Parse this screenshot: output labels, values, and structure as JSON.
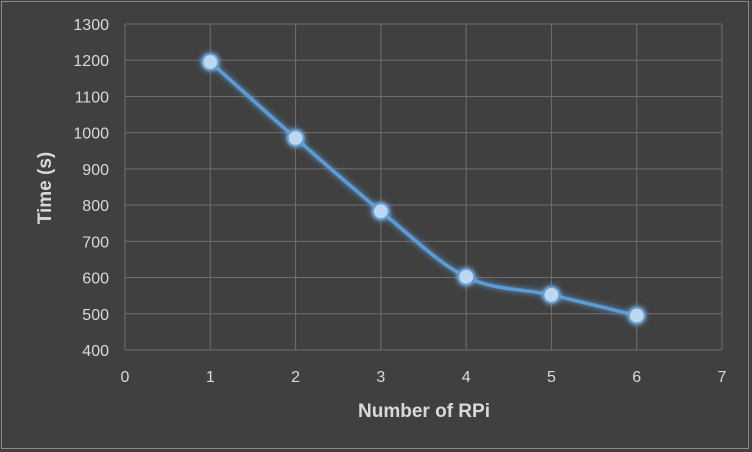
{
  "chart_data": {
    "type": "scatter",
    "mode": "lines+markers",
    "smoothed": true,
    "x": [
      1,
      2,
      3,
      4,
      5,
      6
    ],
    "y": [
      1195,
      985,
      783,
      602,
      552,
      495
    ],
    "xlabel": "Number of RPi",
    "ylabel": "Time (s)",
    "xlim": [
      0,
      7
    ],
    "ylim": [
      400,
      1300
    ],
    "xticks": [
      "0",
      "1",
      "2",
      "3",
      "4",
      "5",
      "6",
      "7"
    ],
    "yticks": [
      "400",
      "500",
      "600",
      "700",
      "800",
      "900",
      "1000",
      "1100",
      "1200",
      "1300"
    ],
    "grid": true,
    "legend": "none",
    "colors": {
      "background": "#404040",
      "grid": "#6e6e6e",
      "series_line": "#5b9bd5",
      "marker_fill": "#bdd7ee",
      "text": "#d9d9d9"
    }
  }
}
